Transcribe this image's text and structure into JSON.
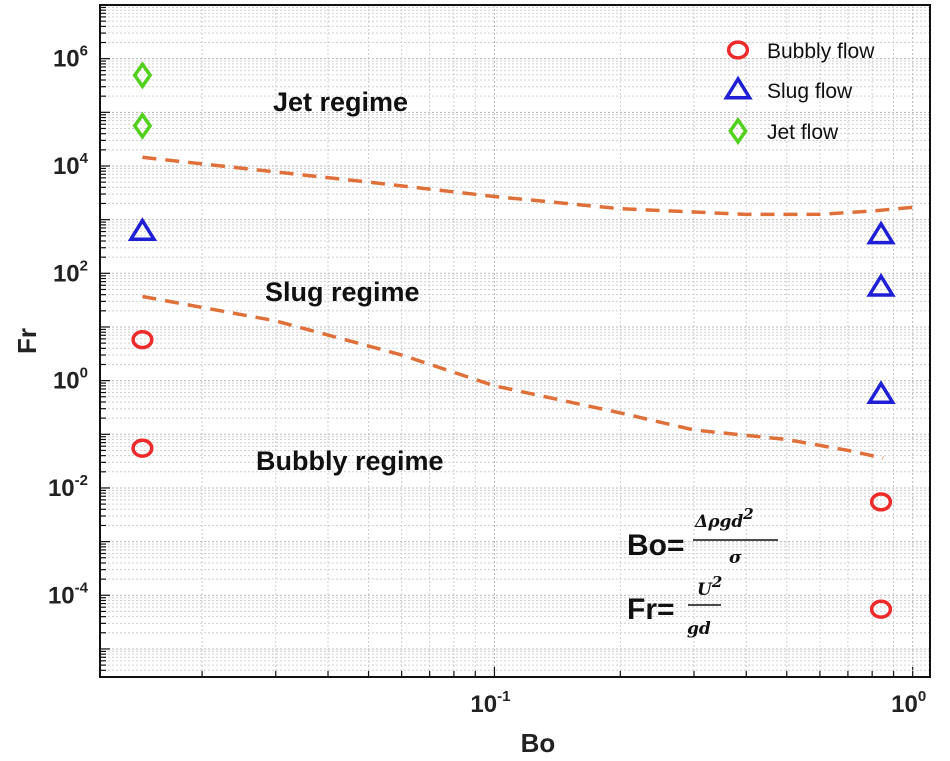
{
  "chart_data": {
    "type": "scatter",
    "xlabel": "Bo",
    "ylabel": "Fr",
    "xscale": "log",
    "yscale": "log",
    "xlim": [
      0.0114,
      1.1
    ],
    "ylim": [
      3e-06,
      10000000
    ],
    "grid": true,
    "legend_position": "top-right",
    "x_ticks": [
      {
        "value": 0.1,
        "base": "10",
        "exp": "-1"
      },
      {
        "value": 1,
        "base": "10",
        "exp": "0"
      }
    ],
    "y_ticks": [
      {
        "value": 0.0001,
        "base": "10",
        "exp": "-4"
      },
      {
        "value": 0.01,
        "base": "10",
        "exp": "-2"
      },
      {
        "value": 1,
        "base": "10",
        "exp": "0"
      },
      {
        "value": 100,
        "base": "10",
        "exp": "2"
      },
      {
        "value": 10000,
        "base": "10",
        "exp": "4"
      },
      {
        "value": 1000000,
        "base": "10",
        "exp": "6"
      }
    ],
    "series": [
      {
        "name": "Bubbly flow",
        "marker": "circle",
        "color": "#ee2a2a",
        "points": [
          {
            "x": 0.0144,
            "y": 5.8
          },
          {
            "x": 0.0144,
            "y": 0.055
          },
          {
            "x": 0.84,
            "y": 0.0055
          },
          {
            "x": 0.84,
            "y": 5.5e-05
          }
        ]
      },
      {
        "name": "Slug flow",
        "marker": "triangle",
        "color": "#1f1fd6",
        "points": [
          {
            "x": 0.0144,
            "y": 600
          },
          {
            "x": 0.84,
            "y": 520
          },
          {
            "x": 0.84,
            "y": 55
          },
          {
            "x": 0.84,
            "y": 0.55
          }
        ]
      },
      {
        "name": "Jet flow",
        "marker": "diamond",
        "color": "#52d11c",
        "points": [
          {
            "x": 0.0144,
            "y": 490000
          },
          {
            "x": 0.0144,
            "y": 56000
          }
        ]
      }
    ],
    "boundaries": [
      {
        "between": "Jet regime / Slug regime",
        "color": "#e0703a",
        "points": [
          [
            0.0144,
            14500
          ],
          [
            0.05,
            5000
          ],
          [
            0.1,
            2700
          ],
          [
            0.2,
            1600
          ],
          [
            0.4,
            1250
          ],
          [
            0.6,
            1260
          ],
          [
            0.8,
            1450
          ],
          [
            1.0,
            1700
          ]
        ]
      },
      {
        "between": "Slug regime / Bubbly regime",
        "color": "#e0703a",
        "points": [
          [
            0.0144,
            37
          ],
          [
            0.03,
            13
          ],
          [
            0.06,
            3
          ],
          [
            0.1,
            0.8
          ],
          [
            0.2,
            0.25
          ],
          [
            0.3,
            0.12
          ],
          [
            0.5,
            0.08
          ],
          [
            0.7,
            0.05
          ],
          [
            0.85,
            0.036
          ]
        ]
      }
    ],
    "annotations": [
      {
        "text": "Jet regime",
        "x": 0.09,
        "y": 65000
      },
      {
        "text": "Slug regime",
        "x": 0.09,
        "y": 20
      },
      {
        "text": "Bubbly regime",
        "x": 0.09,
        "y": 0.05
      }
    ]
  },
  "formulas": {
    "bo": {
      "lhs": "Bo=",
      "numerator": "Δρgd",
      "numerator_exp": "2",
      "denominator": "σ"
    },
    "fr": {
      "lhs": "Fr=",
      "numerator": "U",
      "numerator_exp": "2",
      "denominator": "gd"
    }
  }
}
